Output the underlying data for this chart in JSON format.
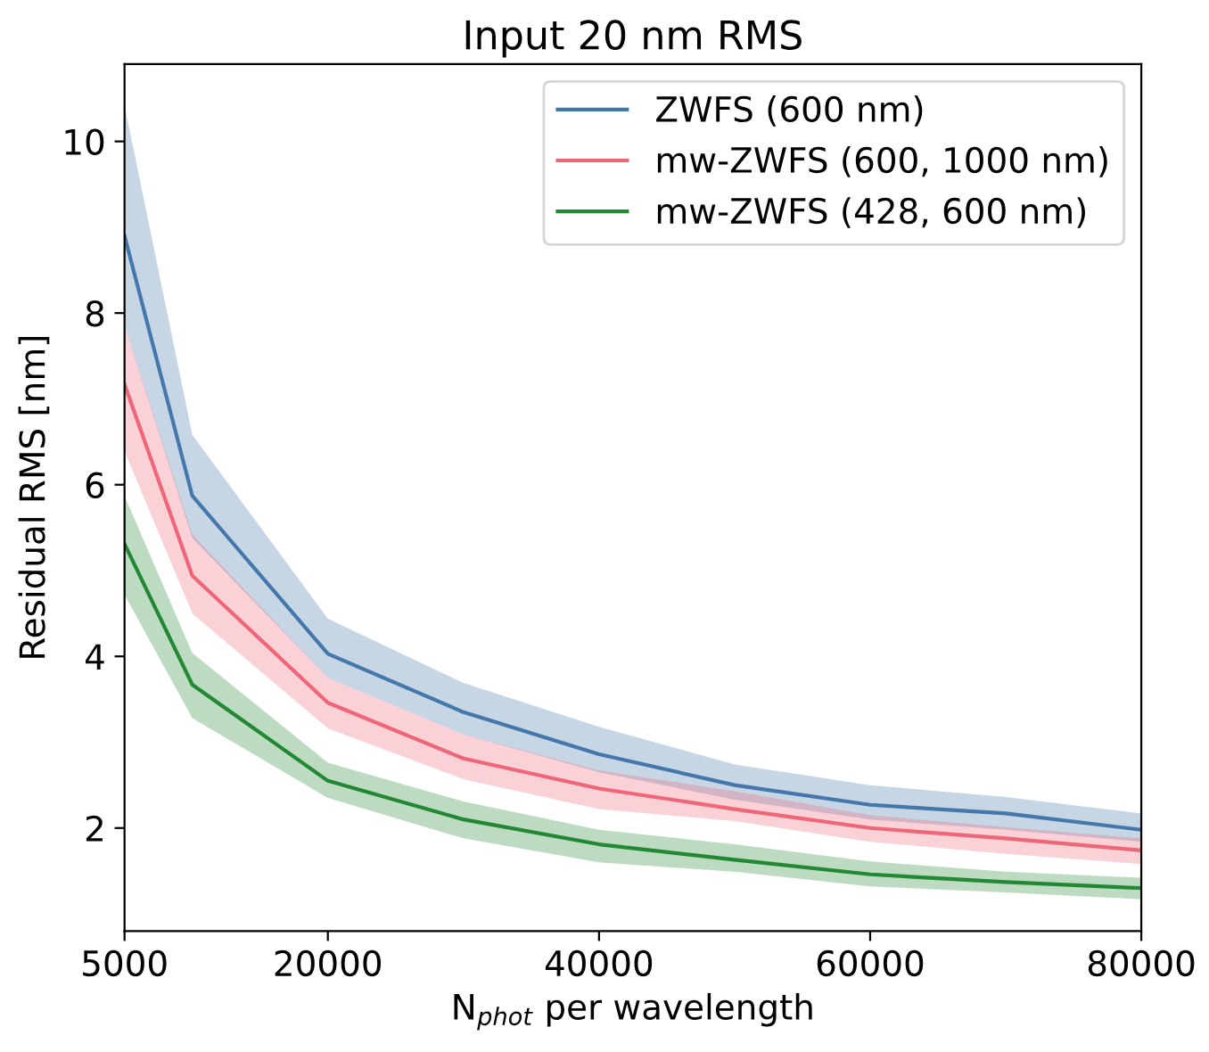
{
  "chart_data": {
    "type": "line",
    "title": "Input 20 nm RMS",
    "xlabel": "N$_{phot}$ per wavelength",
    "ylabel": "Residual RMS [nm]",
    "x": [
      5000,
      10000,
      20000,
      30000,
      40000,
      50000,
      60000,
      70000,
      80000
    ],
    "series": [
      {
        "name": "ZWFS (600 nm)",
        "color": "#4477aa",
        "values": [
          8.9,
          5.87,
          4.03,
          3.35,
          2.86,
          2.5,
          2.27,
          2.17,
          1.98
        ],
        "lower": [
          7.85,
          5.38,
          3.75,
          3.09,
          2.65,
          2.33,
          2.1,
          1.98,
          1.84
        ],
        "upper": [
          10.42,
          6.58,
          4.44,
          3.69,
          3.18,
          2.74,
          2.5,
          2.36,
          2.17
        ]
      },
      {
        "name": "mw-ZWFS (600, 1000 nm)",
        "color": "#ee6677",
        "values": [
          7.17,
          4.94,
          3.46,
          2.81,
          2.46,
          2.22,
          2.0,
          1.88,
          1.74
        ],
        "lower": [
          6.39,
          4.5,
          3.16,
          2.57,
          2.22,
          2.08,
          1.84,
          1.7,
          1.58
        ],
        "upper": [
          7.85,
          5.42,
          3.75,
          3.09,
          2.67,
          2.43,
          2.15,
          2.01,
          1.88
        ]
      },
      {
        "name": "mw-ZWFS (428, 600 nm)",
        "color": "#228833",
        "values": [
          5.31,
          3.67,
          2.55,
          2.1,
          1.81,
          1.63,
          1.46,
          1.37,
          1.3
        ],
        "lower": [
          4.72,
          3.28,
          2.35,
          1.88,
          1.6,
          1.49,
          1.32,
          1.25,
          1.17
        ],
        "upper": [
          5.87,
          4.04,
          2.76,
          2.31,
          1.98,
          1.81,
          1.61,
          1.49,
          1.42
        ]
      }
    ],
    "xlim": [
      5000,
      80000
    ],
    "xticks": [
      5000,
      20000,
      40000,
      60000,
      80000
    ],
    "ylim": [
      0.8,
      10.9
    ],
    "yticks": [
      2,
      4,
      6,
      8,
      10
    ],
    "legend": "top right",
    "grid": false,
    "marker": "none",
    "line_style": "solid"
  }
}
